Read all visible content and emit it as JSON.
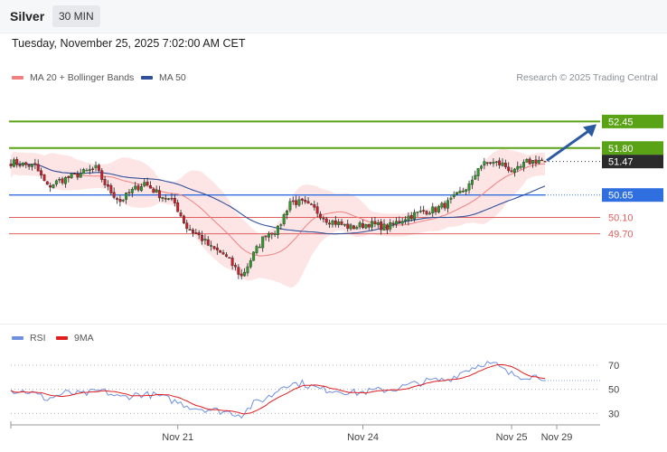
{
  "header": {
    "symbol": "Silver",
    "timeframe": "30 MIN",
    "datetime": "Tuesday, November 25, 2025 7:02:00 AM CET",
    "credit": "Research © 2025 Trading Central"
  },
  "colors": {
    "green_level": "#5aa316",
    "blue_level": "#2f6fe0",
    "red_level": "#e06060",
    "price_tag": "#2b2b2b",
    "ma20": "#f08080",
    "ma50": "#30509a",
    "bollinger_fill": "#fde2e2",
    "arrow": "#2a5aa0",
    "rsi": "#6f8fe0",
    "rsi_ma": "#e01e1e",
    "candle_up": "#2e9a2e",
    "candle_down": "#c8202a"
  },
  "chart_data": [
    {
      "type": "candlestick",
      "legend": [
        {
          "label": "MA 20 + Bollinger Bands",
          "color": "#f08080"
        },
        {
          "label": "MA 50",
          "color": "#30509a"
        }
      ],
      "ylim": [
        47.5,
        53.3
      ],
      "x_ticks": [
        "Nov 21",
        "Nov 24",
        "Nov 25",
        "Nov 29"
      ],
      "levels": [
        {
          "value": 52.45,
          "label": "52.45",
          "kind": "resistance",
          "color": "#5aa316",
          "tag": true
        },
        {
          "value": 51.8,
          "label": "51.80",
          "kind": "resistance",
          "color": "#5aa316",
          "tag": true
        },
        {
          "value": 51.47,
          "label": "51.47",
          "kind": "last_price",
          "color": "#2b2b2b",
          "tag": true
        },
        {
          "value": 50.65,
          "label": "50.65",
          "kind": "pivot",
          "color": "#2f6fe0",
          "tag": true
        },
        {
          "value": 50.1,
          "label": "50.10",
          "kind": "support",
          "color": "#e06060",
          "tag": false
        },
        {
          "value": 49.7,
          "label": "49.70",
          "kind": "support",
          "color": "#e06060",
          "tag": false
        }
      ],
      "projection_target": 52.45,
      "close_path": [
        [
          0,
          51.45
        ],
        [
          8,
          51.35
        ],
        [
          12,
          50.85
        ],
        [
          16,
          51.0
        ],
        [
          22,
          51.15
        ],
        [
          28,
          51.3
        ],
        [
          32,
          50.8
        ],
        [
          36,
          50.5
        ],
        [
          40,
          50.75
        ],
        [
          44,
          50.95
        ],
        [
          48,
          50.7
        ],
        [
          54,
          50.45
        ],
        [
          58,
          49.85
        ],
        [
          62,
          49.65
        ],
        [
          66,
          49.35
        ],
        [
          70,
          49.2
        ],
        [
          74,
          48.85
        ],
        [
          76,
          48.65
        ],
        [
          80,
          49.2
        ],
        [
          84,
          49.7
        ],
        [
          88,
          49.8
        ],
        [
          92,
          50.5
        ],
        [
          96,
          50.45
        ],
        [
          100,
          50.3
        ],
        [
          104,
          50.05
        ],
        [
          108,
          49.95
        ],
        [
          112,
          49.85
        ],
        [
          118,
          49.95
        ],
        [
          124,
          49.85
        ],
        [
          130,
          50.1
        ],
        [
          136,
          50.25
        ],
        [
          140,
          50.3
        ],
        [
          144,
          50.45
        ],
        [
          148,
          50.7
        ],
        [
          152,
          50.95
        ],
        [
          154,
          51.35
        ],
        [
          158,
          51.45
        ],
        [
          162,
          51.4
        ],
        [
          166,
          51.2
        ],
        [
          170,
          51.45
        ],
        [
          174,
          51.5
        ],
        [
          176,
          51.47
        ]
      ]
    },
    {
      "type": "line",
      "legend": [
        {
          "label": "RSI",
          "color": "#6f8fe0"
        },
        {
          "label": "9MA",
          "color": "#e01e1e"
        }
      ],
      "ylim": [
        22,
        88
      ],
      "y_ticks": [
        70,
        50,
        30
      ],
      "guides": [
        70,
        50,
        30
      ],
      "rsi_path": [
        [
          0,
          49
        ],
        [
          6,
          48
        ],
        [
          12,
          42
        ],
        [
          18,
          47
        ],
        [
          24,
          46
        ],
        [
          30,
          49
        ],
        [
          36,
          43
        ],
        [
          42,
          46
        ],
        [
          48,
          45
        ],
        [
          54,
          40
        ],
        [
          60,
          35
        ],
        [
          66,
          33
        ],
        [
          72,
          31
        ],
        [
          76,
          29
        ],
        [
          80,
          38
        ],
        [
          86,
          45
        ],
        [
          90,
          54
        ],
        [
          96,
          55
        ],
        [
          102,
          50
        ],
        [
          108,
          49
        ],
        [
          114,
          47
        ],
        [
          120,
          49
        ],
        [
          126,
          50
        ],
        [
          132,
          54
        ],
        [
          138,
          57
        ],
        [
          144,
          58
        ],
        [
          150,
          66
        ],
        [
          156,
          72
        ],
        [
          160,
          70
        ],
        [
          164,
          63
        ],
        [
          168,
          61
        ],
        [
          172,
          61
        ],
        [
          176,
          60
        ]
      ]
    }
  ]
}
